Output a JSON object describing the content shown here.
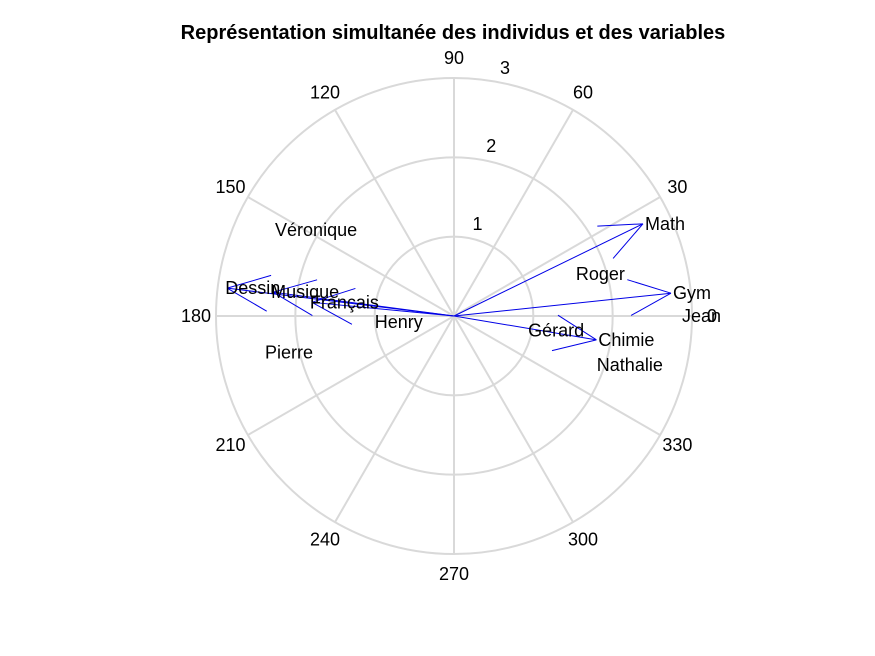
{
  "chart_data": {
    "type": "polar",
    "title": "Représentation simultanée des individus et des variables",
    "angle_ticks": [
      "0",
      "30",
      "60",
      "90",
      "120",
      "150",
      "180",
      "210",
      "240",
      "270",
      "300",
      "330"
    ],
    "radial_ticks": [
      "1",
      "2",
      "3"
    ],
    "rlim": [
      0,
      3
    ],
    "grid": true,
    "colors": {
      "vectors": "#0000e6",
      "grid": "#d9d9d9",
      "text": "#000000"
    },
    "variables": [
      {
        "name": "Math",
        "angle_deg": 26,
        "r": 2.65
      },
      {
        "name": "Gym",
        "angle_deg": 6,
        "r": 2.75
      },
      {
        "name": "Chimie",
        "angle_deg": -9.5,
        "r": 1.82
      },
      {
        "name": "Dessin",
        "angle_deg": 173,
        "r": 2.88
      },
      {
        "name": "Musique",
        "angle_deg": 172.5,
        "r": 2.3
      },
      {
        "name": "Français",
        "angle_deg": 174.5,
        "r": 1.8
      }
    ],
    "individuals": [
      {
        "name": "Jean",
        "angle_deg": 0,
        "r": 3.12
      },
      {
        "name": "Roger",
        "angle_deg": 16,
        "r": 1.92
      },
      {
        "name": "Gérard",
        "angle_deg": -8,
        "r": 1.3
      },
      {
        "name": "Nathalie",
        "angle_deg": -15.5,
        "r": 2.3
      },
      {
        "name": "Véronique",
        "angle_deg": 148,
        "r": 2.05
      },
      {
        "name": "Henry",
        "angle_deg": 186,
        "r": 0.7
      },
      {
        "name": "Pierre",
        "angle_deg": 192.5,
        "r": 2.13
      }
    ]
  }
}
